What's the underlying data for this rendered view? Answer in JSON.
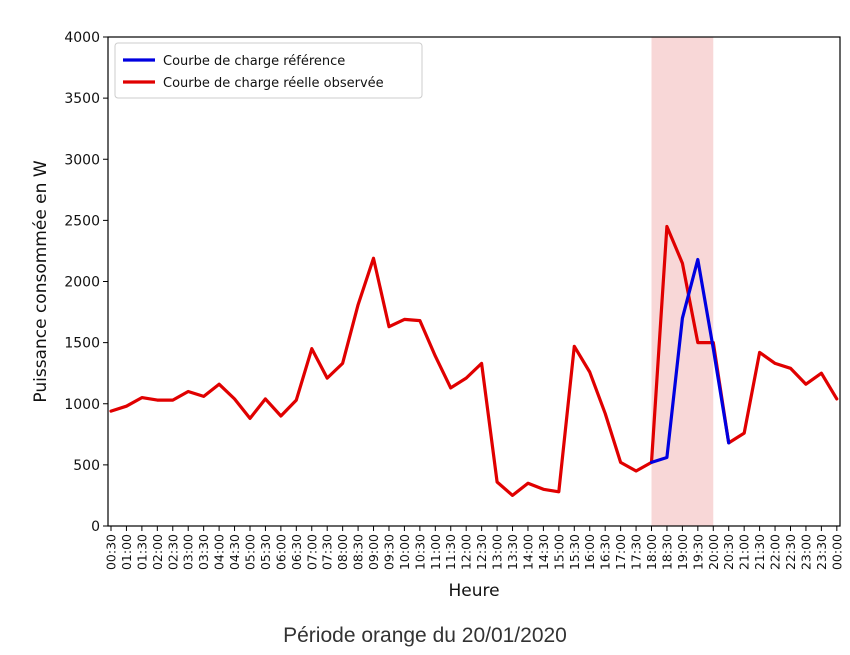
{
  "chart_data": {
    "type": "line",
    "xlabel": "Heure",
    "ylabel": "Puissance consommée en W",
    "ylim": [
      0,
      4000
    ],
    "yticks": [
      0,
      500,
      1000,
      1500,
      2000,
      2500,
      3000,
      3500,
      4000
    ],
    "x": [
      "00:30",
      "01:00",
      "01:30",
      "02:00",
      "02:30",
      "03:00",
      "03:30",
      "04:00",
      "04:30",
      "05:00",
      "05:30",
      "06:00",
      "06:30",
      "07:00",
      "07:30",
      "08:00",
      "08:30",
      "09:00",
      "09:30",
      "10:00",
      "10:30",
      "11:00",
      "11:30",
      "12:00",
      "12:30",
      "13:00",
      "13:30",
      "14:00",
      "14:30",
      "15:00",
      "15:30",
      "16:00",
      "16:30",
      "17:00",
      "17:30",
      "18:00",
      "18:30",
      "19:00",
      "19:30",
      "20:00",
      "20:30",
      "21:00",
      "21:30",
      "22:00",
      "22:30",
      "23:00",
      "23:30",
      "00:00"
    ],
    "highlight": {
      "from": "18:00",
      "to": "20:00",
      "color": "#f8d7d7"
    },
    "legend_position": "top-left",
    "grid": false,
    "series": [
      {
        "name": "Courbe de charge réelle observée",
        "color": "#e00000",
        "values": [
          940,
          980,
          1050,
          1030,
          1030,
          1100,
          1060,
          1160,
          1040,
          880,
          1040,
          900,
          1030,
          1450,
          1210,
          1330,
          1810,
          2190,
          1630,
          1690,
          1680,
          1390,
          1130,
          1210,
          1330,
          360,
          250,
          350,
          300,
          280,
          1470,
          1260,
          920,
          520,
          450,
          520,
          2450,
          2150,
          1500,
          1500,
          680,
          760,
          1420,
          1330,
          1290,
          1160,
          1250,
          1040
        ]
      },
      {
        "name": "Courbe de charge référence",
        "color": "#0000e0",
        "values": [
          null,
          null,
          null,
          null,
          null,
          null,
          null,
          null,
          null,
          null,
          null,
          null,
          null,
          null,
          null,
          null,
          null,
          null,
          null,
          null,
          null,
          null,
          null,
          null,
          null,
          null,
          null,
          null,
          null,
          null,
          null,
          null,
          null,
          null,
          null,
          520,
          560,
          1700,
          2180,
          1450,
          680,
          null,
          null,
          null,
          null,
          null,
          null,
          null
        ]
      }
    ],
    "legend_order": [
      "Courbe de charge référence",
      "Courbe de charge réelle observée"
    ]
  },
  "caption": "Période orange du 20/01/2020"
}
